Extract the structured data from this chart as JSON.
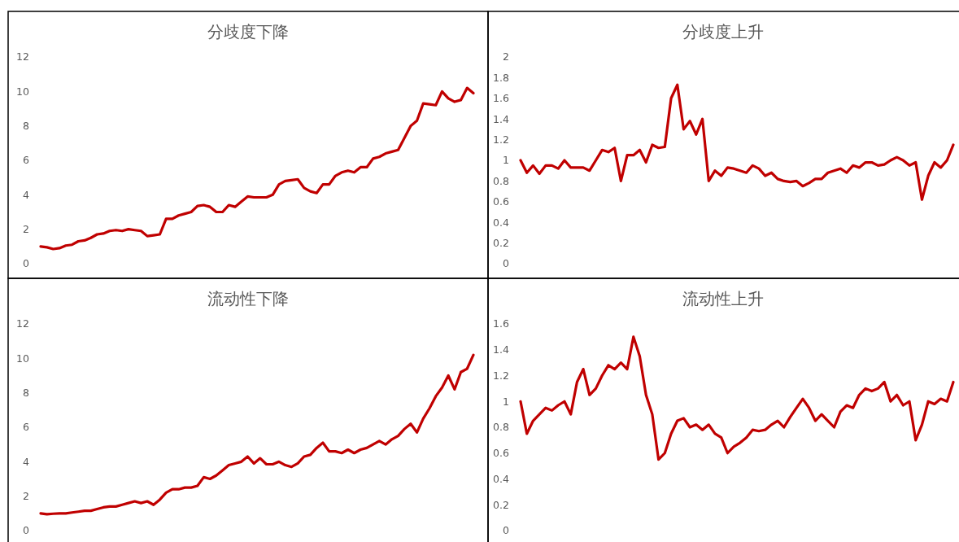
{
  "chart_data": [
    {
      "type": "line",
      "title": "分歧度下降",
      "categories": [
        null,
        null,
        null,
        null,
        null,
        null,
        null,
        null,
        null,
        null,
        null,
        null,
        null,
        null,
        null,
        null,
        null,
        null,
        null,
        null,
        null,
        null,
        null,
        null,
        null,
        null,
        null,
        null,
        null,
        null,
        null,
        null,
        null,
        null,
        null,
        null,
        null,
        null,
        null,
        null,
        null,
        null,
        null,
        null,
        null,
        null,
        null,
        null,
        null,
        null,
        null,
        null,
        null,
        null,
        null,
        null,
        null,
        null,
        null,
        null,
        null,
        null,
        null,
        null,
        null,
        null,
        null,
        null,
        null,
        null
      ],
      "series": [
        {
          "color": "#c00000",
          "values": [
            1.0,
            0.95,
            0.85,
            0.9,
            1.05,
            1.1,
            1.3,
            1.35,
            1.5,
            1.7,
            1.75,
            1.9,
            1.95,
            1.9,
            2.0,
            1.95,
            1.9,
            1.6,
            1.65,
            1.7,
            2.6,
            2.6,
            2.8,
            2.9,
            3.0,
            3.35,
            3.4,
            3.3,
            3.0,
            3.0,
            3.4,
            3.3,
            3.6,
            3.9,
            3.85,
            3.85,
            3.85,
            4.0,
            4.6,
            4.8,
            4.85,
            4.9,
            4.4,
            4.2,
            4.1,
            4.6,
            4.6,
            5.1,
            5.3,
            5.4,
            5.3,
            5.6,
            5.6,
            6.1,
            6.2,
            6.4,
            6.5,
            6.6,
            7.3,
            8.0,
            8.3,
            9.3,
            9.25,
            9.2,
            10.0,
            9.6,
            9.4,
            9.5,
            10.2,
            9.9
          ]
        }
      ],
      "ylim": [
        0,
        12
      ],
      "yticks": [
        0,
        2,
        4,
        6,
        8,
        10,
        12
      ],
      "tick_labels": "y",
      "line_style": "solid"
    },
    {
      "type": "line",
      "title": "分歧度上升",
      "categories": [
        null,
        null,
        null,
        null,
        null,
        null,
        null,
        null,
        null,
        null,
        null,
        null,
        null,
        null,
        null,
        null,
        null,
        null,
        null,
        null,
        null,
        null,
        null,
        null,
        null,
        null,
        null,
        null,
        null,
        null,
        null,
        null,
        null,
        null,
        null,
        null,
        null,
        null,
        null,
        null,
        null,
        null,
        null,
        null,
        null,
        null,
        null,
        null,
        null,
        null,
        null,
        null,
        null,
        null,
        null,
        null,
        null,
        null,
        null,
        null,
        null,
        null,
        null,
        null,
        null,
        null,
        null,
        null,
        null,
        null
      ],
      "series": [
        {
          "color": "#c00000",
          "values": [
            1.0,
            0.88,
            0.95,
            0.87,
            0.95,
            0.95,
            0.92,
            1.0,
            0.93,
            0.93,
            0.93,
            0.9,
            1.0,
            1.1,
            1.08,
            1.12,
            0.8,
            1.05,
            1.05,
            1.1,
            0.98,
            1.15,
            1.12,
            1.13,
            1.6,
            1.73,
            1.3,
            1.38,
            1.25,
            1.4,
            0.8,
            0.9,
            0.85,
            0.93,
            0.92,
            0.9,
            0.88,
            0.95,
            0.92,
            0.85,
            0.88,
            0.82,
            0.8,
            0.79,
            0.8,
            0.75,
            0.78,
            0.82,
            0.82,
            0.88,
            0.9,
            0.92,
            0.88,
            0.95,
            0.93,
            0.98,
            0.98,
            0.95,
            0.96,
            1.0,
            1.03,
            1.0,
            0.95,
            0.98,
            0.62,
            0.85,
            0.98,
            0.93,
            1.0,
            1.15
          ]
        }
      ],
      "ylim": [
        0,
        2
      ],
      "yticks": [
        0,
        0.2,
        0.4,
        0.6,
        0.8,
        1,
        1.2,
        1.4,
        1.6,
        1.8,
        2
      ],
      "tick_labels": "y",
      "line_style": "solid"
    },
    {
      "type": "line",
      "title": "流动性下降",
      "categories": [
        null,
        null,
        null,
        null,
        null,
        null,
        null,
        null,
        null,
        null,
        null,
        null,
        null,
        null,
        null,
        null,
        null,
        null,
        null,
        null,
        null,
        null,
        null,
        null,
        null,
        null,
        null,
        null,
        null,
        null,
        null,
        null,
        null,
        null,
        null,
        null,
        null,
        null,
        null,
        null,
        null,
        null,
        null,
        null,
        null,
        null,
        null,
        null,
        null,
        null,
        null,
        null,
        null,
        null,
        null,
        null,
        null,
        null,
        null,
        null,
        null,
        null,
        null,
        null,
        null,
        null,
        null,
        null,
        null,
        null
      ],
      "series": [
        {
          "color": "#c00000",
          "values": [
            1.0,
            0.95,
            0.98,
            1.0,
            1.0,
            1.05,
            1.1,
            1.15,
            1.15,
            1.25,
            1.35,
            1.4,
            1.4,
            1.5,
            1.6,
            1.7,
            1.6,
            1.7,
            1.5,
            1.8,
            2.2,
            2.4,
            2.4,
            2.5,
            2.5,
            2.6,
            3.1,
            3.0,
            3.2,
            3.5,
            3.8,
            3.9,
            4.0,
            4.3,
            3.9,
            4.2,
            3.85,
            3.85,
            4.0,
            3.8,
            3.7,
            3.9,
            4.3,
            4.4,
            4.8,
            5.1,
            4.6,
            4.6,
            4.5,
            4.7,
            4.5,
            4.7,
            4.8,
            5.0,
            5.2,
            5.0,
            5.3,
            5.5,
            5.9,
            6.2,
            5.7,
            6.5,
            7.1,
            7.8,
            8.3,
            9.0,
            8.2,
            9.2,
            9.4,
            10.2
          ]
        }
      ],
      "ylim": [
        0,
        12
      ],
      "yticks": [
        0,
        2,
        4,
        6,
        8,
        10,
        12
      ],
      "tick_labels": "y",
      "line_style": "solid"
    },
    {
      "type": "line",
      "title": "流动性上升",
      "categories": [
        null,
        null,
        null,
        null,
        null,
        null,
        null,
        null,
        null,
        null,
        null,
        null,
        null,
        null,
        null,
        null,
        null,
        null,
        null,
        null,
        null,
        null,
        null,
        null,
        null,
        null,
        null,
        null,
        null,
        null,
        null,
        null,
        null,
        null,
        null,
        null,
        null,
        null,
        null,
        null,
        null,
        null,
        null,
        null,
        null,
        null,
        null,
        null,
        null,
        null,
        null,
        null,
        null,
        null,
        null,
        null,
        null,
        null,
        null,
        null,
        null,
        null,
        null,
        null,
        null,
        null,
        null,
        null,
        null,
        null
      ],
      "series": [
        {
          "color": "#c00000",
          "values": [
            1.0,
            0.75,
            0.85,
            0.9,
            0.95,
            0.93,
            0.97,
            1.0,
            0.9,
            1.15,
            1.25,
            1.05,
            1.1,
            1.2,
            1.28,
            1.25,
            1.3,
            1.25,
            1.5,
            1.35,
            1.05,
            0.9,
            0.55,
            0.6,
            0.75,
            0.85,
            0.87,
            0.8,
            0.82,
            0.78,
            0.82,
            0.75,
            0.72,
            0.6,
            0.65,
            0.68,
            0.72,
            0.78,
            0.77,
            0.78,
            0.82,
            0.85,
            0.8,
            0.88,
            0.95,
            1.02,
            0.95,
            0.85,
            0.9,
            0.85,
            0.8,
            0.92,
            0.97,
            0.95,
            1.05,
            1.1,
            1.08,
            1.1,
            1.15,
            1.0,
            1.05,
            0.97,
            1.0,
            0.7,
            0.82,
            1.0,
            0.98,
            1.02,
            1.0,
            1.15
          ]
        }
      ],
      "ylim": [
        0,
        1.6
      ],
      "yticks": [
        0,
        0.2,
        0.4,
        0.6,
        0.8,
        1,
        1.2,
        1.4,
        1.6
      ],
      "tick_labels": "y",
      "line_style": "solid"
    }
  ]
}
